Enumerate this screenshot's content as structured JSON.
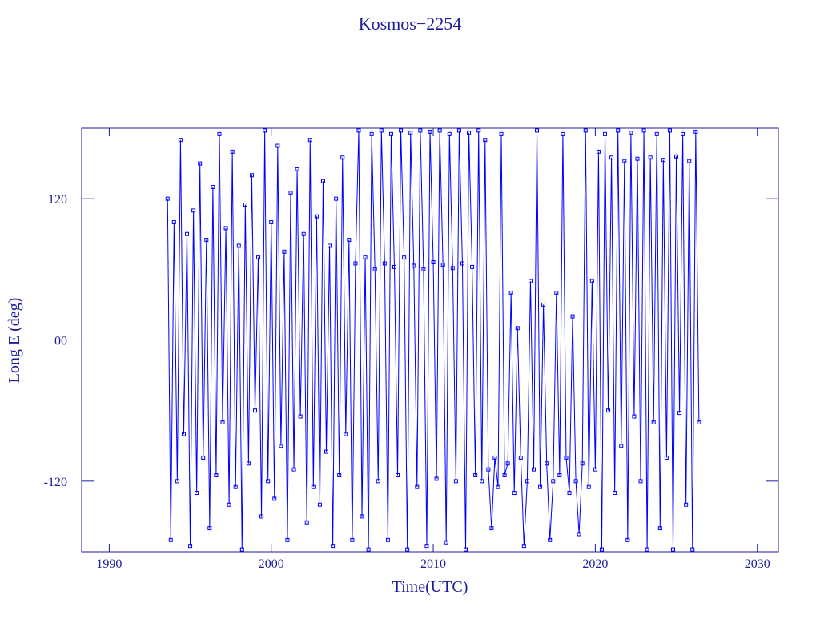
{
  "chart_data": {
    "type": "line",
    "title": "Kosmos−2254",
    "x_label": "Time(UTC)",
    "y_label": "Long E (deg)",
    "xlim": [
      1988.3,
      2031.3
    ],
    "xticks": [
      1990,
      2000,
      2010,
      2020,
      2030
    ],
    "ylim": [
      -180,
      180
    ],
    "yticks": [
      -120,
      {
        "value": 0,
        "label": "00"
      },
      120
    ],
    "axis_color": "#1c1c9c",
    "series": [
      {
        "color": "#0000ff",
        "x": [
          1993.6,
          1993.8,
          1994.0,
          1994.2,
          1994.4,
          1994.6,
          1994.8,
          1995.0,
          1995.2,
          1995.4,
          1995.6,
          1995.8,
          1996.0,
          1996.2,
          1996.4,
          1996.6,
          1996.8,
          1997.0,
          1997.2,
          1997.4,
          1997.6,
          1997.8,
          1998.0,
          1998.2,
          1998.4,
          1998.6,
          1998.8,
          1999.0,
          1999.2,
          1999.4,
          1999.6,
          1999.8,
          2000.0,
          2000.2,
          2000.4,
          2000.6,
          2000.8,
          2001.0,
          2001.2,
          2001.4,
          2001.6,
          2001.8,
          2002.0,
          2002.2,
          2002.4,
          2002.6,
          2002.8,
          2003.0,
          2003.2,
          2003.4,
          2003.6,
          2003.8,
          2004.0,
          2004.2,
          2004.4,
          2004.6,
          2004.8,
          2005.0,
          2005.2,
          2005.4,
          2005.6,
          2005.8,
          2006.0,
          2006.2,
          2006.4,
          2006.6,
          2006.8,
          2007.0,
          2007.2,
          2007.4,
          2007.6,
          2007.8,
          2008.0,
          2008.2,
          2008.4,
          2008.6,
          2008.8,
          2009.0,
          2009.2,
          2009.4,
          2009.6,
          2009.8,
          2010.0,
          2010.2,
          2010.4,
          2010.6,
          2010.8,
          2011.0,
          2011.2,
          2011.4,
          2011.6,
          2011.8,
          2012.0,
          2012.2,
          2012.4,
          2012.6,
          2012.8,
          2013.0,
          2013.2,
          2013.4,
          2013.6,
          2013.8,
          2014.0,
          2014.2,
          2014.4,
          2014.6,
          2014.8,
          2015.0,
          2015.2,
          2015.4,
          2015.6,
          2015.8,
          2016.0,
          2016.2,
          2016.4,
          2016.6,
          2016.8,
          2017.0,
          2017.2,
          2017.4,
          2017.6,
          2017.8,
          2018.0,
          2018.2,
          2018.4,
          2018.6,
          2018.8,
          2019.0,
          2019.2,
          2019.4,
          2019.6,
          2019.8,
          2020.0,
          2020.2,
          2020.4,
          2020.6,
          2020.8,
          2021.0,
          2021.2,
          2021.4,
          2021.6,
          2021.8,
          2022.0,
          2022.2,
          2022.4,
          2022.6,
          2022.8,
          2023.0,
          2023.2,
          2023.4,
          2023.6,
          2023.8,
          2024.0,
          2024.2,
          2024.4,
          2024.6,
          2024.8,
          2025.0,
          2025.2,
          2025.4,
          2025.6,
          2025.8,
          2026.0,
          2026.2,
          2026.4
        ],
        "values": [
          120,
          -170,
          100,
          -120,
          170,
          -80,
          90,
          -175,
          110,
          -130,
          150,
          -100,
          85,
          -160,
          130,
          -115,
          175,
          -70,
          95,
          -140,
          160,
          -125,
          80,
          -178,
          115,
          -105,
          140,
          -60,
          70,
          -150,
          178,
          -120,
          100,
          -135,
          165,
          -90,
          75,
          -170,
          125,
          -110,
          145,
          -65,
          90,
          -155,
          170,
          -125,
          105,
          -140,
          135,
          -95,
          80,
          -175,
          120,
          -115,
          155,
          -80,
          85,
          -170,
          65,
          178,
          -150,
          70,
          -178,
          175,
          60,
          -120,
          178,
          65,
          -170,
          175,
          62,
          -115,
          178,
          70,
          -178,
          176,
          63,
          -125,
          178,
          60,
          -175,
          177,
          66,
          -118,
          178,
          64,
          -172,
          175,
          61,
          -120,
          178,
          65,
          -178,
          176,
          62,
          -115,
          178,
          -120,
          170,
          -110,
          -160,
          -100,
          -125,
          175,
          -115,
          -105,
          40,
          -130,
          10,
          -100,
          -175,
          -120,
          50,
          -110,
          178,
          -125,
          30,
          -105,
          -170,
          -120,
          40,
          -115,
          175,
          -100,
          -130,
          20,
          -120,
          -165,
          -105,
          178,
          -125,
          50,
          -110,
          160,
          -178,
          175,
          -60,
          155,
          -130,
          178,
          -90,
          152,
          -170,
          176,
          -65,
          154,
          -120,
          178,
          -178,
          155,
          -70,
          175,
          -160,
          153,
          -100,
          178,
          -178,
          156,
          -62,
          175,
          -140,
          152,
          -178,
          177,
          -70
        ]
      }
    ]
  }
}
